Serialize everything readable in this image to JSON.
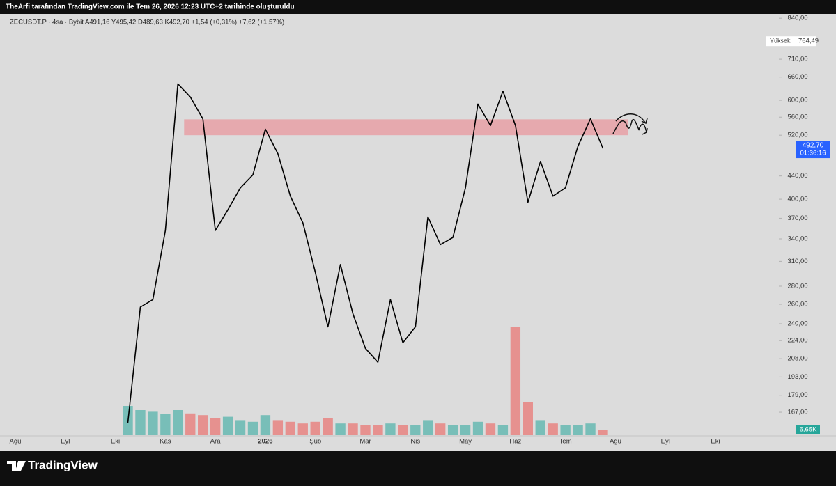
{
  "chart_data": {
    "type": "line",
    "title": "TheArfi tarafından TradingView.com ile Tem 26, 2026 12:23 UTC+2 tarihinde oluşturuldu",
    "subtitle": "ZECUSDT.P · 4sa · Bybit  A491,16  Y495,42  D489,63  K492,70  +1,54 (+0,31%)  +7,62 (+1,57%)",
    "categories": [
      "Ağu",
      null,
      null,
      null,
      "Eyl",
      null,
      null,
      null,
      "Eki",
      null,
      null,
      null,
      "Kas",
      null,
      null,
      null,
      "Ara",
      null,
      null,
      null,
      "2026",
      null,
      null,
      null,
      "Şub",
      null,
      null,
      null,
      "Mar",
      null,
      null,
      null,
      "Nis",
      null,
      null,
      null,
      "May",
      null,
      null,
      null,
      "Haz",
      null,
      null,
      null,
      "Tem",
      null,
      null,
      null,
      "Ağu",
      null,
      null,
      null,
      "Eyl",
      null,
      null,
      null,
      "Eki"
    ],
    "values": [
      null,
      null,
      null,
      null,
      null,
      null,
      null,
      null,
      null,
      160,
      257,
      265,
      352,
      642,
      608,
      556,
      352,
      383,
      419,
      442,
      533,
      482,
      405,
      363,
      296,
      237,
      306,
      250,
      217,
      205,
      265,
      222,
      237,
      372,
      332,
      342,
      419,
      591,
      541,
      623,
      541,
      395,
      467,
      405,
      419,
      497,
      556,
      492.7,
      null,
      null,
      null,
      null,
      null,
      null,
      null,
      null,
      null
    ],
    "color": "#000000",
    "volume": [
      null,
      null,
      null,
      null,
      null,
      null,
      null,
      null,
      null,
      35,
      30,
      28,
      25,
      30,
      26,
      24,
      20,
      22,
      18,
      16,
      24,
      18,
      16,
      14,
      16,
      20,
      14,
      14,
      12,
      12,
      14,
      12,
      12,
      18,
      14,
      12,
      12,
      16,
      14,
      12,
      130,
      40,
      18,
      14,
      12,
      12,
      14,
      6.65,
      null,
      null,
      null,
      null,
      null,
      null,
      null,
      null,
      null
    ],
    "volume_colors": [
      "#26a69a",
      "#ef5350"
    ],
    "log_scale": true,
    "grid": false,
    "ylim": [
      152,
      855
    ],
    "yticks": [
      {
        "value": 840,
        "label": "840,00"
      },
      {
        "value": 710,
        "label": "710,00"
      },
      {
        "value": 660,
        "label": "660,00"
      },
      {
        "value": 600,
        "label": "600,00"
      },
      {
        "value": 560,
        "label": "560,00"
      },
      {
        "value": 520,
        "label": "520,00"
      },
      {
        "value": 440,
        "label": "440,00"
      },
      {
        "value": 400,
        "label": "400,00"
      },
      {
        "value": 370,
        "label": "370,00"
      },
      {
        "value": 340,
        "label": "340,00"
      },
      {
        "value": 310,
        "label": "310,00"
      },
      {
        "value": 280,
        "label": "280,00"
      },
      {
        "value": 260,
        "label": "260,00"
      },
      {
        "value": 240,
        "label": "240,00"
      },
      {
        "value": 224,
        "label": "224,00"
      },
      {
        "value": 208,
        "label": "208,00"
      },
      {
        "value": 193,
        "label": "193,00"
      },
      {
        "value": 179,
        "label": "179,00"
      },
      {
        "value": 167,
        "label": "167,00"
      }
    ],
    "zone": {
      "range": [
        520,
        555
      ],
      "color": "#e8a0a6"
    },
    "high": {
      "name": "Yüksek",
      "value": 764.49,
      "label": "764,49"
    },
    "last_price": {
      "value": 492.7,
      "label": "492,70",
      "color": "#2962ff"
    },
    "countdown": "01:36:16",
    "last_volume": {
      "value": 6.65,
      "label": "6,65K",
      "color": "#26a69a"
    },
    "brand": "TradingView"
  }
}
